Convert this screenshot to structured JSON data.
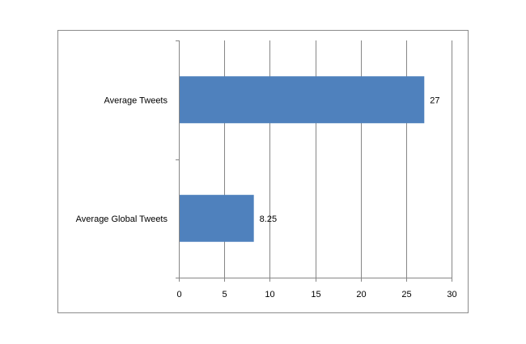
{
  "chart_data": {
    "type": "bar",
    "orientation": "horizontal",
    "categories": [
      "Average Tweets",
      "Average Global Tweets"
    ],
    "values": [
      27,
      8.25
    ],
    "value_labels": [
      "27",
      "8.25"
    ],
    "xlim": [
      0,
      30
    ],
    "x_ticks": [
      0,
      5,
      10,
      15,
      20,
      25,
      30
    ],
    "grid": "vertical",
    "legend": "none",
    "bar_color": "#4f81bd",
    "gridline_color": "#868686"
  }
}
